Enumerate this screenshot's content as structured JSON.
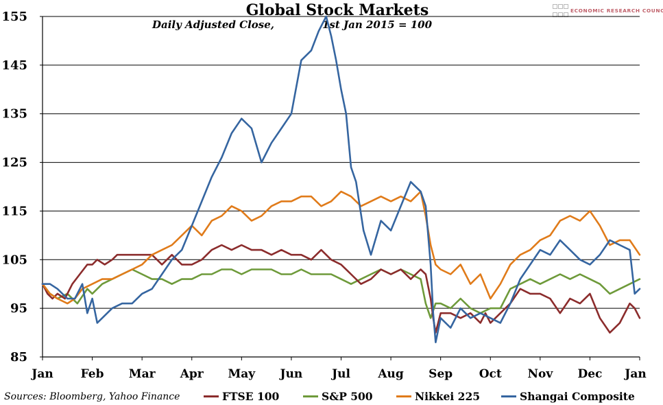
{
  "header": {
    "title": "Global Stock Markets",
    "subtitle_a": "Daily Adjusted Close,",
    "subtitle_b": "1st Jan 2015 = 100",
    "logo_text": "ECONOMIC RESEARCH COUNCIL"
  },
  "footer": {
    "source": "Sources: Bloomberg, Yahoo Finance"
  },
  "colors": {
    "FTSE 100": "#8b2c2c",
    "S&P 500": "#6e9a3a",
    "Nikkei 225": "#e07b1a",
    "Shangai Composite": "#3565a0"
  },
  "chart_data": {
    "type": "line",
    "title": "Global Stock Markets",
    "subtitle": "Daily Adjusted Close, 1st Jan 2015 = 100",
    "x_tick_labels": [
      "Jan",
      "Feb",
      "Mar",
      "Apr",
      "May",
      "Jun",
      "Jul",
      "Aug",
      "Sep",
      "Oct",
      "Nov",
      "Dec",
      "Jan"
    ],
    "y_ticks": [
      85,
      95,
      105,
      115,
      125,
      135,
      145,
      155
    ],
    "ylim": [
      85,
      155
    ],
    "grid": true,
    "legend_position": "bottom",
    "x_unit": "month of 2015 (0 = Jan 1, 12 = Jan 1 2016)",
    "series": [
      {
        "name": "FTSE 100",
        "x": [
          0,
          0.1,
          0.2,
          0.3,
          0.45,
          0.6,
          0.75,
          0.9,
          1.0,
          1.1,
          1.25,
          1.4,
          1.5,
          1.6,
          1.8,
          2.0,
          2.2,
          2.4,
          2.6,
          2.8,
          3.0,
          3.2,
          3.4,
          3.6,
          3.8,
          4.0,
          4.2,
          4.4,
          4.6,
          4.8,
          5.0,
          5.2,
          5.4,
          5.6,
          5.8,
          6.0,
          6.2,
          6.4,
          6.6,
          6.8,
          7.0,
          7.2,
          7.4,
          7.6,
          7.7,
          7.8,
          7.85,
          7.9,
          8.0,
          8.2,
          8.4,
          8.6,
          8.8,
          8.9,
          9.0,
          9.2,
          9.4,
          9.6,
          9.8,
          10.0,
          10.2,
          10.4,
          10.6,
          10.8,
          11.0,
          11.2,
          11.4,
          11.6,
          11.8,
          11.9,
          12.0
        ],
        "y": [
          100,
          98,
          97,
          98,
          97,
          100,
          102,
          104,
          104,
          105,
          104,
          105,
          106,
          106,
          106,
          106,
          106,
          104,
          106,
          104,
          104,
          105,
          107,
          108,
          107,
          108,
          107,
          107,
          106,
          107,
          106,
          106,
          105,
          107,
          105,
          104,
          102,
          100,
          101,
          103,
          102,
          103,
          101,
          103,
          102,
          97,
          93,
          90,
          94,
          94,
          93,
          94,
          92,
          94,
          92,
          94,
          96,
          99,
          98,
          98,
          97,
          94,
          97,
          96,
          98,
          93,
          90,
          92,
          96,
          95,
          93
        ]
      },
      {
        "name": "S&P 500",
        "x": [
          0,
          0.15,
          0.3,
          0.5,
          0.7,
          0.9,
          1.0,
          1.2,
          1.4,
          1.6,
          1.8,
          2.0,
          2.2,
          2.4,
          2.6,
          2.8,
          3.0,
          3.2,
          3.4,
          3.6,
          3.8,
          4.0,
          4.2,
          4.4,
          4.6,
          4.8,
          5.0,
          5.2,
          5.4,
          5.6,
          5.8,
          6.0,
          6.2,
          6.4,
          6.6,
          6.8,
          7.0,
          7.2,
          7.4,
          7.6,
          7.7,
          7.8,
          7.9,
          8.0,
          8.2,
          8.4,
          8.6,
          8.8,
          9.0,
          9.2,
          9.4,
          9.6,
          9.8,
          10.0,
          10.2,
          10.4,
          10.6,
          10.8,
          11.0,
          11.2,
          11.4,
          11.6,
          11.8,
          12.0
        ],
        "y": [
          100,
          98,
          97,
          98,
          96,
          99,
          98,
          100,
          101,
          102,
          103,
          102,
          101,
          101,
          100,
          101,
          101,
          102,
          102,
          103,
          103,
          102,
          103,
          103,
          103,
          102,
          102,
          103,
          102,
          102,
          102,
          101,
          100,
          101,
          102,
          103,
          102,
          103,
          102,
          101,
          96,
          93,
          96,
          96,
          95,
          97,
          95,
          94,
          95,
          95,
          99,
          100,
          101,
          100,
          101,
          102,
          101,
          102,
          101,
          100,
          98,
          99,
          100,
          101
        ]
      },
      {
        "name": "Nikkei 225",
        "x": [
          0,
          0.15,
          0.3,
          0.5,
          0.65,
          0.8,
          1.0,
          1.2,
          1.4,
          1.6,
          1.8,
          2.0,
          2.2,
          2.4,
          2.6,
          2.8,
          3.0,
          3.2,
          3.4,
          3.6,
          3.8,
          4.0,
          4.2,
          4.4,
          4.6,
          4.8,
          5.0,
          5.2,
          5.4,
          5.6,
          5.8,
          6.0,
          6.2,
          6.4,
          6.6,
          6.8,
          7.0,
          7.2,
          7.4,
          7.6,
          7.7,
          7.8,
          7.9,
          8.0,
          8.2,
          8.4,
          8.6,
          8.8,
          9.0,
          9.2,
          9.4,
          9.6,
          9.8,
          10.0,
          10.2,
          10.4,
          10.6,
          10.8,
          11.0,
          11.2,
          11.4,
          11.6,
          11.8,
          12.0
        ],
        "y": [
          100,
          98,
          97,
          96,
          97,
          99,
          100,
          101,
          101,
          102,
          103,
          104,
          106,
          107,
          108,
          110,
          112,
          110,
          113,
          114,
          116,
          115,
          113,
          114,
          116,
          117,
          117,
          118,
          118,
          116,
          117,
          119,
          118,
          116,
          117,
          118,
          117,
          118,
          117,
          119,
          114,
          108,
          104,
          103,
          102,
          104,
          100,
          102,
          97,
          100,
          104,
          106,
          107,
          109,
          110,
          113,
          114,
          113,
          115,
          112,
          108,
          109,
          109,
          106
        ]
      },
      {
        "name": "Shangai Composite",
        "x": [
          0,
          0.15,
          0.3,
          0.5,
          0.65,
          0.8,
          0.9,
          1.0,
          1.1,
          1.2,
          1.4,
          1.6,
          1.8,
          2.0,
          2.2,
          2.4,
          2.6,
          2.8,
          3.0,
          3.2,
          3.4,
          3.6,
          3.8,
          4.0,
          4.2,
          4.4,
          4.6,
          4.8,
          5.0,
          5.2,
          5.4,
          5.55,
          5.7,
          5.8,
          5.9,
          6.0,
          6.1,
          6.2,
          6.3,
          6.45,
          6.6,
          6.8,
          7.0,
          7.2,
          7.4,
          7.6,
          7.7,
          7.8,
          7.85,
          7.9,
          8.0,
          8.2,
          8.4,
          8.6,
          8.8,
          9.0,
          9.2,
          9.4,
          9.6,
          9.8,
          10.0,
          10.2,
          10.4,
          10.6,
          10.8,
          11.0,
          11.2,
          11.4,
          11.6,
          11.8,
          11.9,
          12.0
        ],
        "y": [
          100,
          100,
          99,
          97,
          97,
          100,
          94,
          97,
          92,
          93,
          95,
          96,
          96,
          98,
          99,
          102,
          105,
          107,
          112,
          117,
          122,
          126,
          131,
          134,
          132,
          125,
          129,
          132,
          135,
          146,
          148,
          152,
          155,
          151,
          146,
          140,
          135,
          124,
          121,
          111,
          106,
          113,
          111,
          116,
          121,
          119,
          116,
          104,
          94,
          88,
          93,
          91,
          95,
          93,
          94,
          93,
          92,
          96,
          101,
          104,
          107,
          106,
          109,
          107,
          105,
          104,
          106,
          109,
          108,
          107,
          98,
          99
        ]
      }
    ]
  }
}
